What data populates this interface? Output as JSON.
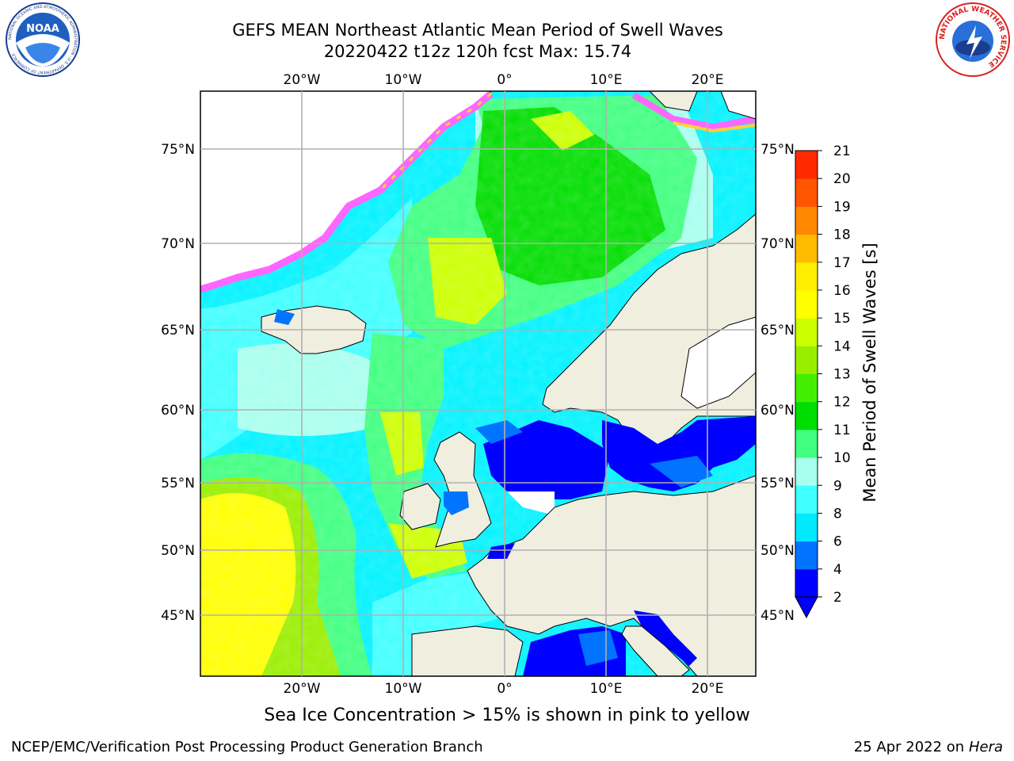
{
  "header": {
    "title_line1": "GEFS MEAN Northeast Atlantic Mean Period of Swell Waves",
    "title_line2": "20220422 t12z 120h fcst   Max: 15.74"
  },
  "logos": {
    "left": "NOAA",
    "left_ring_text": "NATIONAL OCEANIC AND ATMOSPHERIC ADMINISTRATION · U.S. DEPARTMENT OF COMMERCE",
    "right_ring_text": "NATIONAL WEATHER SERVICE"
  },
  "map": {
    "lon_ticks": [
      "20°W",
      "10°W",
      "0°",
      "10°E",
      "20°E"
    ],
    "lat_ticks": [
      "75°N",
      "70°N",
      "65°N",
      "60°N",
      "55°N",
      "50°N",
      "45°N"
    ],
    "colors": {
      "land": "#efeedf",
      "ice_pink": "#ff66ff",
      "ice_yellow": "#ffd13a",
      "grid": "#b0b0b0"
    }
  },
  "colorbar": {
    "label": "Mean Period of Swell Waves [s]",
    "ticks": [
      "2",
      "4",
      "6",
      "8",
      "9",
      "10",
      "11",
      "12",
      "13",
      "14",
      "15",
      "16",
      "17",
      "18",
      "19",
      "20",
      "21"
    ],
    "colors": [
      "#0000ff",
      "#0074ff",
      "#00e9ff",
      "#40ffff",
      "#a8ffee",
      "#40ff80",
      "#00dd00",
      "#44ee00",
      "#99ee00",
      "#ccff00",
      "#ffff00",
      "#ffee00",
      "#ffbb00",
      "#ff8800",
      "#ff5500",
      "#ff2a00"
    ]
  },
  "footer": {
    "note": "Sea Ice Concentration > 15% is shown in pink to yellow",
    "credit": "NCEP/EMC/Verification Post Processing Product Generation Branch",
    "date": "25 Apr 2022 on",
    "machine": "Hera"
  }
}
